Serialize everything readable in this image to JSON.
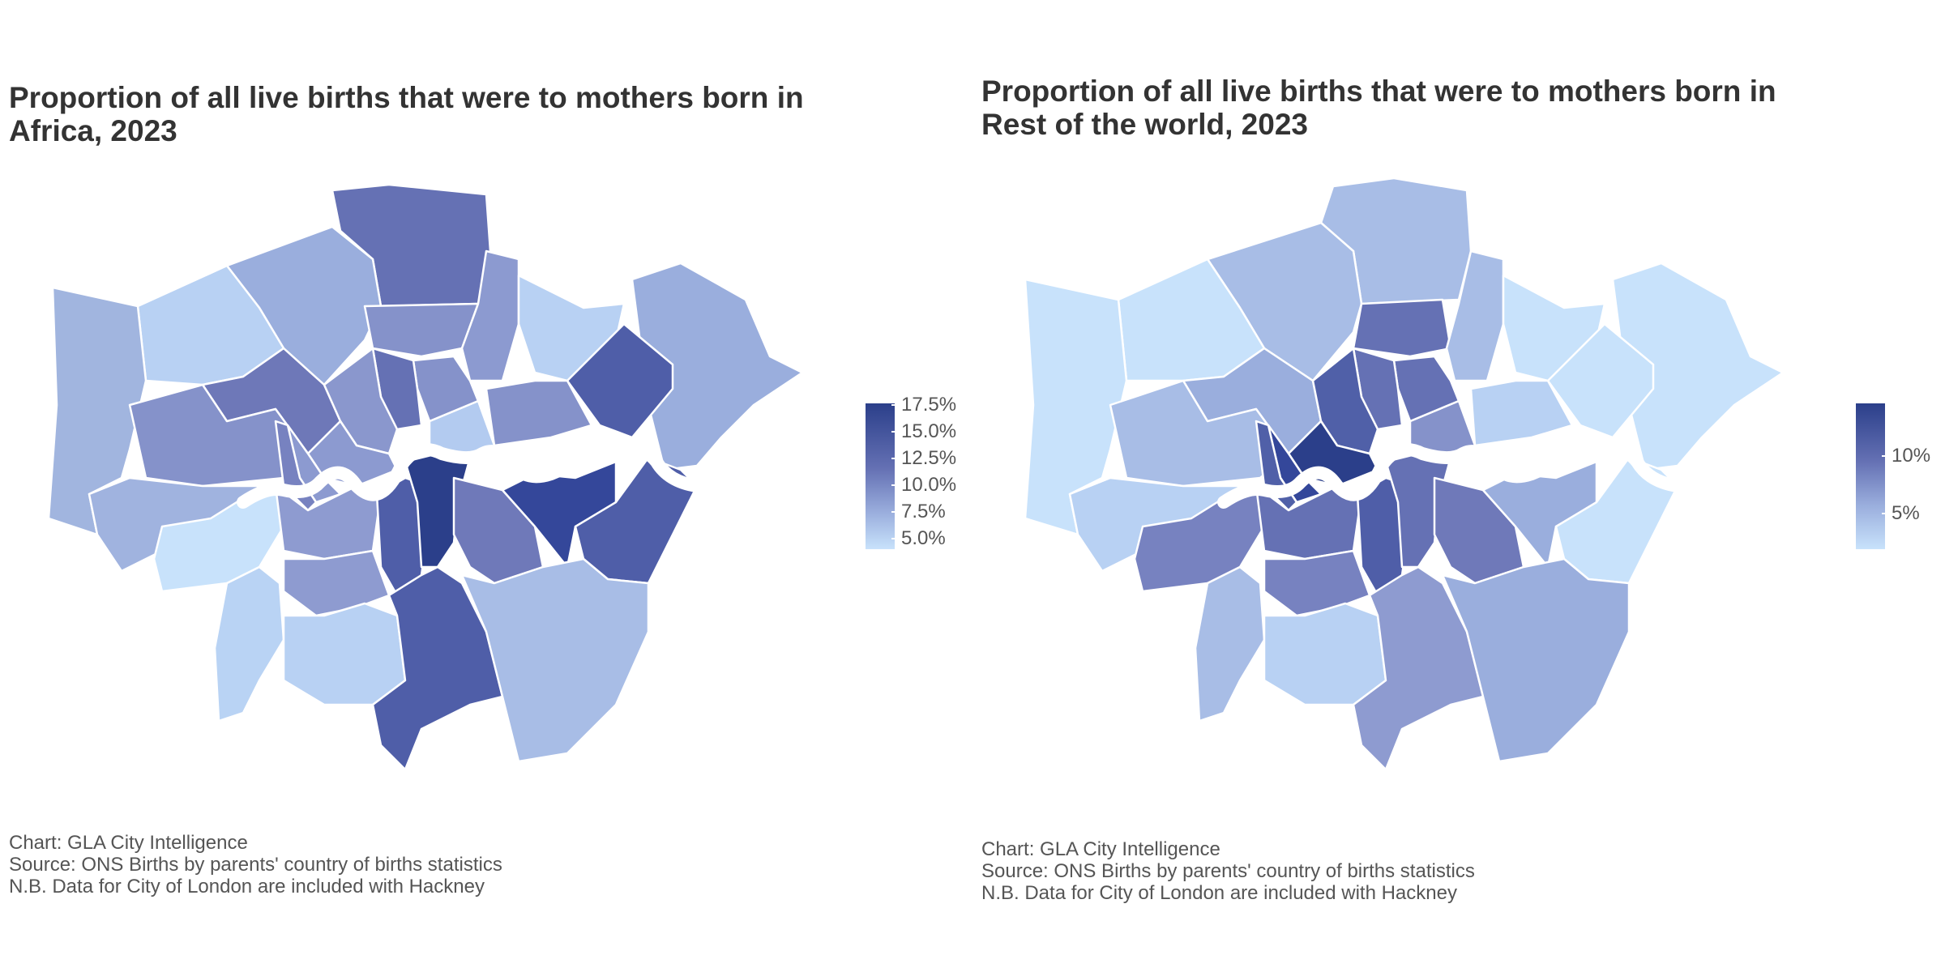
{
  "maps": [
    {
      "id": "africa",
      "title_line1": "Proportion of all live births that were to mothers born in",
      "title_line2": "Africa, 2023",
      "legend_ticks": [
        "17.5%",
        "15.0%",
        "12.5%",
        "10.0%",
        "7.5%",
        "5.0%"
      ],
      "legend_colors": {
        "high": "#2b3f8a",
        "low": "#c8e2fb"
      },
      "caption_line1": "Chart: GLA City Intelligence",
      "caption_line2": "Source: ONS Births by parents' country of births statistics",
      "caption_line3": "N.B. Data for City of London are included with Hackney"
    },
    {
      "id": "rest-of-world",
      "title_line1": "Proportion of all live births that were to mothers born in",
      "title_line2": "Rest of the world, 2023",
      "legend_ticks": [
        "10%",
        "5%"
      ],
      "legend_colors": {
        "high": "#2b3f8a",
        "low": "#c8e2fb"
      },
      "caption_line1": "Chart: GLA City Intelligence",
      "caption_line2": "Source: ONS Births by parents' country of births statistics",
      "caption_line3": "N.B. Data for City of London are included with Hackney"
    }
  ]
}
